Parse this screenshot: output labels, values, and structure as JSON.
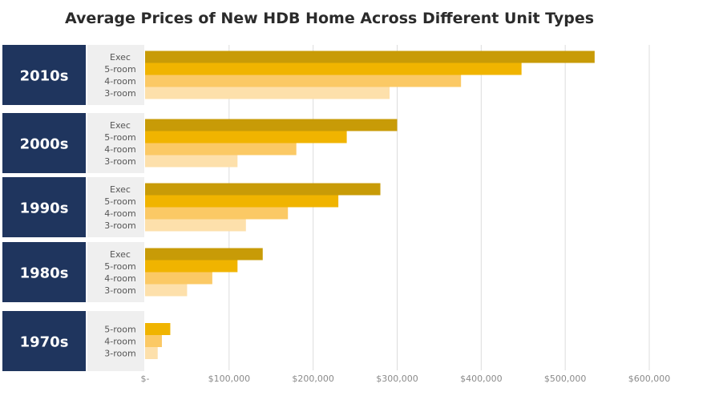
{
  "title": "Average Prices of New HDB Home Across Different Unit Types",
  "colors": {
    "decade_block": "#1f355e",
    "label_block": "#efefef",
    "Exec": "#c89b07",
    "5-room": "#f0b400",
    "4-room": "#fbc965",
    "3-room": "#fde0ab",
    "grid": "#dcdcdc"
  },
  "chart_data": {
    "type": "bar",
    "orientation": "horizontal",
    "title": "Average Prices of New HDB Home Across Different Unit Types",
    "xlim": [
      0,
      600000
    ],
    "x_ticks": [
      0,
      100000,
      200000,
      300000,
      400000,
      500000,
      600000
    ],
    "x_tick_labels": [
      "$-",
      "$100,000",
      "$200,000",
      "$300,000",
      "$400,000",
      "$500,000",
      "$600,000"
    ],
    "grid": "vertical",
    "groups": [
      {
        "decade": "2010s",
        "bars": [
          {
            "label": "Exec",
            "value": 535000
          },
          {
            "label": "5-room",
            "value": 448000
          },
          {
            "label": "4-room",
            "value": 376000
          },
          {
            "label": "3-room",
            "value": 291000
          }
        ]
      },
      {
        "decade": "2000s",
        "bars": [
          {
            "label": "Exec",
            "value": 300000
          },
          {
            "label": "5-room",
            "value": 240000
          },
          {
            "label": "4-room",
            "value": 180000
          },
          {
            "label": "3-room",
            "value": 110000
          }
        ]
      },
      {
        "decade": "1990s",
        "bars": [
          {
            "label": "Exec",
            "value": 280000
          },
          {
            "label": "5-room",
            "value": 230000
          },
          {
            "label": "4-room",
            "value": 170000
          },
          {
            "label": "3-room",
            "value": 120000
          }
        ]
      },
      {
        "decade": "1980s",
        "bars": [
          {
            "label": "Exec",
            "value": 140000
          },
          {
            "label": "5-room",
            "value": 110000
          },
          {
            "label": "4-room",
            "value": 80000
          },
          {
            "label": "3-room",
            "value": 50000
          }
        ]
      },
      {
        "decade": "1970s",
        "bars": [
          {
            "label": "5-room",
            "value": 30000
          },
          {
            "label": "4-room",
            "value": 20000
          },
          {
            "label": "3-room",
            "value": 15000
          }
        ]
      }
    ]
  }
}
